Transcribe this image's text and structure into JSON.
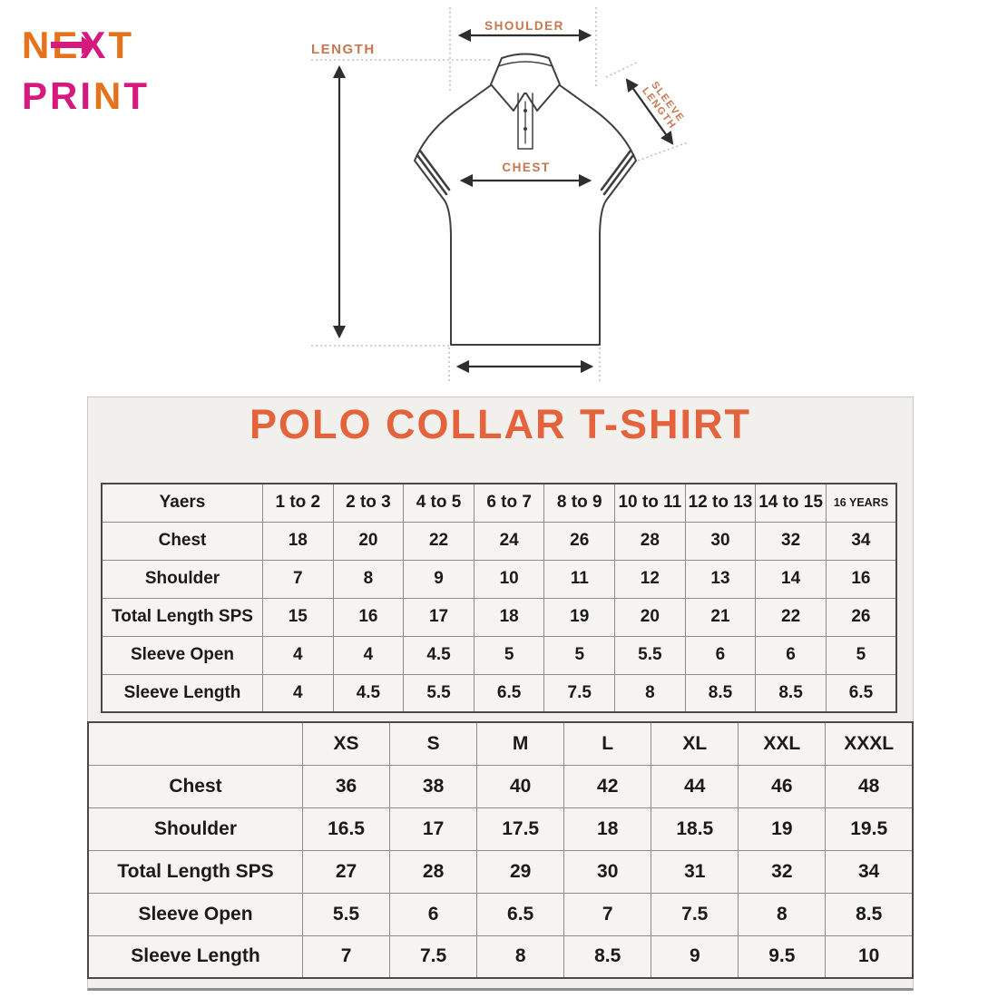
{
  "logo": {
    "next": {
      "ne": "NE",
      "x": "X",
      "t": "T"
    },
    "print": {
      "pri": "PRI",
      "n": "N",
      "t": "T"
    }
  },
  "diagram": {
    "labels": {
      "length": "LENGTH",
      "shoulder": "SHOULDER",
      "chest": "CHEST",
      "sleeve_line1": "SLEEVE",
      "sleeve_line2": "LENGTH"
    }
  },
  "panel": {
    "title": "POLO COLLAR T-SHIRT"
  },
  "kids_table": {
    "header": [
      "Yaers",
      "1 to 2",
      "2 to 3",
      "4 to 5",
      "6 to 7",
      "8 to 9",
      "10 to 11",
      "12 to 13",
      "14 to 15",
      "16 YEARS"
    ],
    "rows": [
      [
        "Chest",
        18,
        20,
        22,
        24,
        26,
        28,
        30,
        32,
        34
      ],
      [
        "Shoulder",
        7,
        8,
        9,
        10,
        11,
        12,
        13,
        14,
        16
      ],
      [
        "Total Length SPS",
        15,
        16,
        17,
        18,
        19,
        20,
        21,
        22,
        26
      ],
      [
        "Sleeve Open",
        4,
        4,
        4.5,
        5,
        5,
        5.5,
        6,
        6,
        5
      ],
      [
        "Sleeve Length",
        4,
        4.5,
        5.5,
        6.5,
        7.5,
        8,
        8.5,
        8.5,
        6.5
      ]
    ]
  },
  "adult_table": {
    "header": [
      "",
      "XS",
      "S",
      "M",
      "L",
      "XL",
      "XXL",
      "XXXL"
    ],
    "rows": [
      [
        "Chest",
        36,
        38,
        40,
        42,
        44,
        46,
        48
      ],
      [
        "Shoulder",
        16.5,
        17,
        17.5,
        18,
        18.5,
        19,
        19.5
      ],
      [
        "Total Length SPS",
        27,
        28,
        29,
        30,
        31,
        32,
        34
      ],
      [
        "Sleeve Open",
        5.5,
        6,
        6.5,
        7,
        7.5,
        8,
        8.5
      ],
      [
        "Sleeve Length",
        7,
        7.5,
        8,
        8.5,
        9,
        9.5,
        10
      ]
    ]
  },
  "colors": {
    "logo_orange": "#e6731c",
    "logo_magenta": "#d6197d",
    "title_orange": "#e4623c",
    "diagram_label_orange": "#c8764f",
    "panel_bg": "#f1f0ed",
    "cell_bg": "#f5f4f2"
  }
}
